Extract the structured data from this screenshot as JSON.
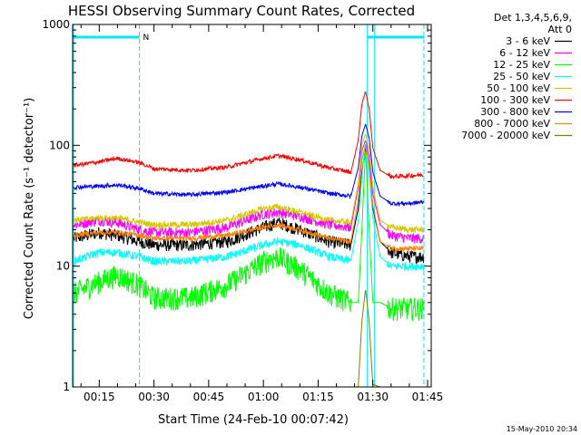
{
  "chart_data": {
    "type": "line",
    "title": "HESSI Observing Summary Count Rates, Corrected",
    "xlabel": "Start Time (24-Feb-10 00:07:42)",
    "ylabel": "Corrected Count Rate (s⁻¹ detector⁻¹)",
    "y_scale": "log",
    "ylim": [
      1,
      1000
    ],
    "xlim_minutes": [
      7.7,
      106
    ],
    "x_ticks": [
      {
        "min": 15,
        "label": "00:15"
      },
      {
        "min": 30,
        "label": "00:30"
      },
      {
        "min": 45,
        "label": "00:45"
      },
      {
        "min": 60,
        "label": "01:00"
      },
      {
        "min": 75,
        "label": "01:15"
      },
      {
        "min": 90,
        "label": "01:30"
      },
      {
        "min": 105,
        "label": "01:45"
      }
    ],
    "y_ticks": [
      {
        "value": 1,
        "label": "1"
      },
      {
        "value": 10,
        "label": "10"
      },
      {
        "value": 100,
        "label": "100"
      },
      {
        "value": 1000,
        "label": "1000"
      }
    ],
    "legend_header": [
      "Det 1,3,4,5,6,9,",
      "Att 0"
    ],
    "legend_position": "outside-right",
    "time_minutes": [
      8,
      15,
      20,
      26,
      30,
      40,
      50,
      60,
      64,
      70,
      78,
      84,
      86,
      87,
      88,
      89,
      90,
      92,
      95,
      100,
      104
    ],
    "series": [
      {
        "name": "3 - 6 keV",
        "color": "#000000",
        "noise": 0.12,
        "values": [
          17,
          19,
          18,
          16,
          15,
          15,
          16,
          21,
          23,
          20,
          16,
          15,
          30,
          60,
          95,
          70,
          30,
          16,
          13,
          12,
          12
        ]
      },
      {
        "name": "6 - 12 keV",
        "color": "#ff00ff",
        "noise": 0.1,
        "values": [
          22,
          24,
          23,
          20,
          19,
          19,
          21,
          27,
          28,
          26,
          22,
          21,
          45,
          90,
          110,
          80,
          40,
          22,
          18,
          17,
          17
        ]
      },
      {
        "name": "12 - 25 keV",
        "color": "#00ff00",
        "noise": 0.22,
        "values": [
          6,
          7.5,
          8.5,
          7,
          5.5,
          5.5,
          7,
          11,
          12,
          9.5,
          6,
          5,
          5,
          20,
          95,
          20,
          5,
          5,
          4.5,
          4.5,
          4.5
        ]
      },
      {
        "name": "25 - 50 keV",
        "color": "#00ffff",
        "noise": 0.08,
        "values": [
          11,
          13,
          13,
          12,
          11,
          11,
          12,
          15,
          16,
          15,
          12,
          11,
          24,
          55,
          105,
          60,
          25,
          12,
          10,
          10,
          10
        ]
      },
      {
        "name": "50 - 100 keV",
        "color": "#d4c800",
        "noise": 0.06,
        "values": [
          24,
          25,
          25,
          23,
          22,
          22,
          24,
          30,
          31,
          28,
          24,
          23,
          48,
          100,
          125,
          95,
          45,
          24,
          21,
          20,
          20
        ]
      },
      {
        "name": "100 - 300 keV",
        "color": "#ff0000",
        "noise": 0.04,
        "values": [
          68,
          73,
          78,
          72,
          64,
          62,
          66,
          78,
          82,
          76,
          65,
          60,
          110,
          220,
          280,
          200,
          95,
          62,
          55,
          56,
          57
        ]
      },
      {
        "name": "300 - 800 keV",
        "color": "#0000ff",
        "noise": 0.04,
        "values": [
          45,
          46,
          47,
          44,
          40,
          39,
          41,
          46,
          48,
          45,
          40,
          38,
          65,
          120,
          150,
          115,
          60,
          38,
          33,
          33,
          34
        ]
      },
      {
        "name": "800 - 7000 keV",
        "color": "#ff8000",
        "noise": 0.05,
        "values": [
          18,
          19,
          19,
          18,
          17,
          17,
          18,
          21,
          22,
          20,
          17,
          16,
          35,
          75,
          100,
          70,
          32,
          16,
          14,
          14,
          14
        ]
      },
      {
        "name": "7000 - 20000 keV",
        "color": "#808000",
        "noise": 0,
        "values": [
          null,
          null,
          null,
          null,
          null,
          null,
          null,
          null,
          null,
          null,
          null,
          null,
          1,
          3.5,
          6.5,
          3.5,
          1,
          null,
          null,
          null,
          null
        ]
      }
    ],
    "markers": {
      "color": "#00e5ff",
      "top_bars_minutes": [
        [
          8,
          26
        ],
        [
          88.5,
          104
        ]
      ],
      "flag_label": "N",
      "flag_at_minutes": 26,
      "dashed_lines_minutes": [
        26,
        104
      ],
      "solid_lines_minutes": [
        88.5,
        90.5
      ]
    }
  },
  "timestamp": "15-May-2010 20:34"
}
